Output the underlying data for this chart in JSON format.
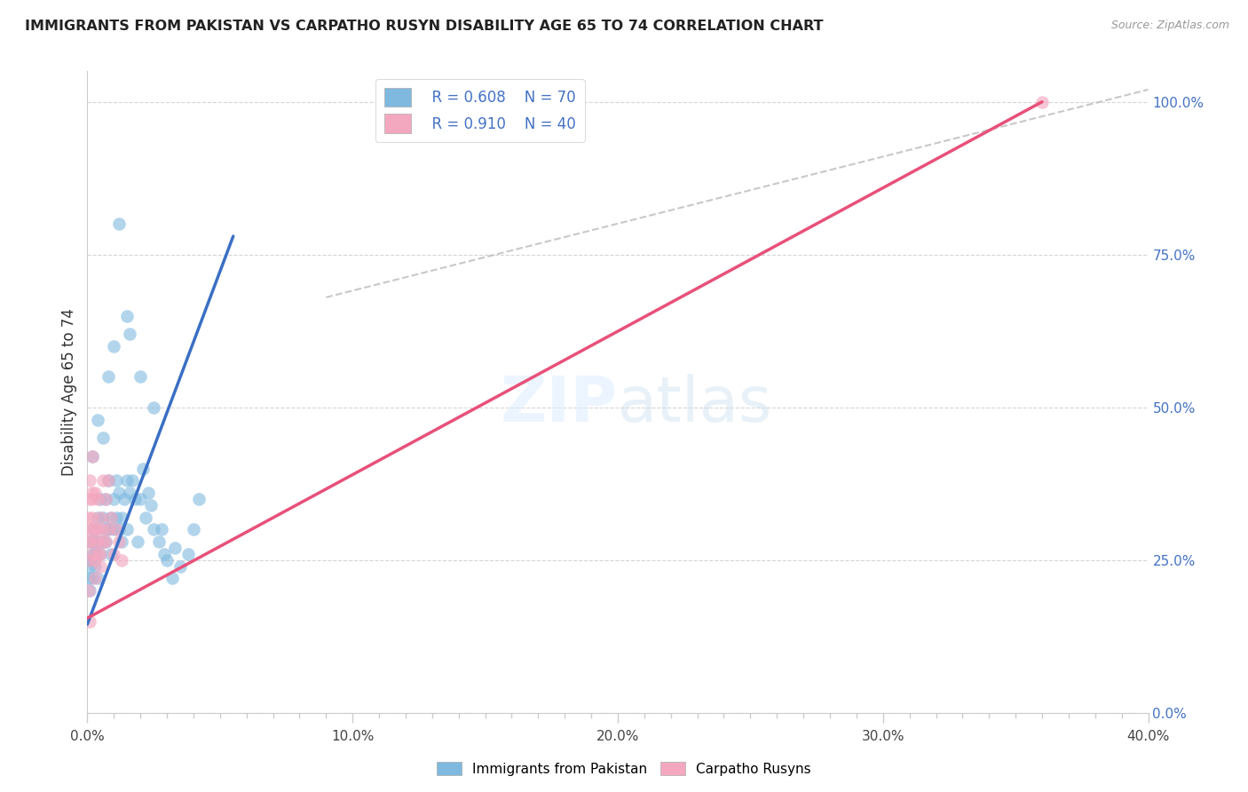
{
  "title": "IMMIGRANTS FROM PAKISTAN VS CARPATHO RUSYN DISABILITY AGE 65 TO 74 CORRELATION CHART",
  "source": "Source: ZipAtlas.com",
  "ylabel": "Disability Age 65 to 74",
  "xmin": 0.0,
  "xmax": 0.4,
  "ymin": 0.0,
  "ymax": 1.05,
  "legend_label1": "Immigrants from Pakistan",
  "legend_label2": "Carpatho Rusyns",
  "R1": 0.608,
  "N1": 70,
  "R2": 0.91,
  "N2": 40,
  "blue_scatter_color": "#7fb9e0",
  "pink_scatter_color": "#f4a8c0",
  "blue_line_color": "#3a6fc4",
  "pink_line_color": "#e8507a",
  "blue_line_x": [
    0.0,
    0.055
  ],
  "blue_line_y": [
    0.145,
    0.78
  ],
  "pink_line_x": [
    0.0,
    0.36
  ],
  "pink_line_y": [
    0.155,
    1.0
  ],
  "ref_line_x": [
    0.09,
    0.4
  ],
  "ref_line_y": [
    0.68,
    1.02
  ],
  "pakistan_x": [
    0.0005,
    0.001,
    0.001,
    0.001,
    0.001,
    0.002,
    0.002,
    0.002,
    0.002,
    0.002,
    0.003,
    0.003,
    0.003,
    0.003,
    0.004,
    0.004,
    0.004,
    0.005,
    0.005,
    0.005,
    0.006,
    0.006,
    0.007,
    0.007,
    0.007,
    0.008,
    0.008,
    0.009,
    0.009,
    0.01,
    0.01,
    0.011,
    0.011,
    0.012,
    0.012,
    0.013,
    0.013,
    0.014,
    0.015,
    0.015,
    0.016,
    0.017,
    0.018,
    0.019,
    0.02,
    0.021,
    0.022,
    0.023,
    0.024,
    0.025,
    0.027,
    0.028,
    0.029,
    0.03,
    0.032,
    0.033,
    0.035,
    0.038,
    0.04,
    0.042,
    0.002,
    0.004,
    0.006,
    0.008,
    0.01,
    0.015,
    0.02,
    0.025,
    0.012,
    0.016
  ],
  "pakistan_y": [
    0.22,
    0.28,
    0.25,
    0.2,
    0.24,
    0.3,
    0.25,
    0.22,
    0.28,
    0.26,
    0.28,
    0.24,
    0.3,
    0.26,
    0.32,
    0.28,
    0.22,
    0.35,
    0.28,
    0.26,
    0.32,
    0.28,
    0.3,
    0.35,
    0.28,
    0.38,
    0.3,
    0.32,
    0.26,
    0.35,
    0.3,
    0.38,
    0.32,
    0.3,
    0.36,
    0.32,
    0.28,
    0.35,
    0.3,
    0.38,
    0.36,
    0.38,
    0.35,
    0.28,
    0.35,
    0.4,
    0.32,
    0.36,
    0.34,
    0.3,
    0.28,
    0.3,
    0.26,
    0.25,
    0.22,
    0.27,
    0.24,
    0.26,
    0.3,
    0.35,
    0.42,
    0.48,
    0.45,
    0.55,
    0.6,
    0.65,
    0.55,
    0.5,
    0.8,
    0.62
  ],
  "rusyn_x": [
    0.0003,
    0.0005,
    0.001,
    0.001,
    0.001,
    0.001,
    0.002,
    0.002,
    0.002,
    0.002,
    0.003,
    0.003,
    0.003,
    0.003,
    0.004,
    0.004,
    0.004,
    0.005,
    0.005,
    0.006,
    0.006,
    0.007,
    0.007,
    0.008,
    0.008,
    0.009,
    0.01,
    0.011,
    0.012,
    0.013,
    0.0005,
    0.001,
    0.002,
    0.002,
    0.003,
    0.004,
    0.005,
    0.006,
    0.001,
    0.36
  ],
  "rusyn_y": [
    0.28,
    0.32,
    0.3,
    0.25,
    0.35,
    0.28,
    0.32,
    0.26,
    0.3,
    0.35,
    0.28,
    0.3,
    0.36,
    0.25,
    0.3,
    0.35,
    0.28,
    0.32,
    0.26,
    0.3,
    0.38,
    0.28,
    0.35,
    0.3,
    0.38,
    0.32,
    0.26,
    0.3,
    0.28,
    0.25,
    0.2,
    0.38,
    0.42,
    0.36,
    0.22,
    0.26,
    0.24,
    0.28,
    0.15,
    1.0
  ],
  "grid_color": "#cccccc",
  "background_color": "#ffffff",
  "right_ytick_labels": [
    "100.0%",
    "75.0%",
    "50.0%",
    "25.0%",
    "0.0%"
  ],
  "right_ytick_values": [
    1.0,
    0.75,
    0.5,
    0.25,
    0.0
  ],
  "xtick_major": [
    0.0,
    0.1,
    0.2,
    0.3,
    0.4
  ],
  "xtick_minor_step": 0.01
}
